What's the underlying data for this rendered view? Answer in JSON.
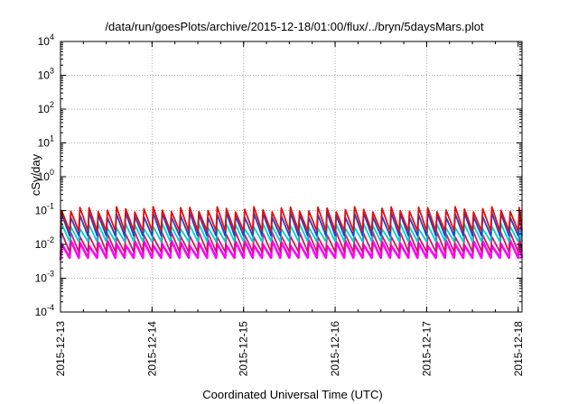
{
  "chart_data": {
    "type": "line",
    "title": "/data/run/goesPlots/archive/2015-12-18/01:00/flux/../bryn/5daysMars.plot",
    "xlabel": "Coordinated Universal Time (UTC)",
    "ylabel": "cSv/day",
    "y_scale": "log",
    "ylim": [
      0.0001,
      10000
    ],
    "y_ticks": [
      {
        "base": "10",
        "exp": "4",
        "value": 10000
      },
      {
        "base": "10",
        "exp": "3",
        "value": 1000
      },
      {
        "base": "10",
        "exp": "2",
        "value": 100
      },
      {
        "base": "10",
        "exp": "1",
        "value": 10
      },
      {
        "base": "10",
        "exp": "0",
        "value": 1
      },
      {
        "base": "10",
        "exp": "-1",
        "value": 0.1
      },
      {
        "base": "10",
        "exp": "-2",
        "value": 0.01
      },
      {
        "base": "10",
        "exp": "-3",
        "value": 0.001
      },
      {
        "base": "10",
        "exp": "-4",
        "value": 0.0001
      }
    ],
    "x_ticks": [
      "2015-12-13",
      "2015-12-14",
      "2015-12-15",
      "2015-12-16",
      "2015-12-17",
      "2015-12-18"
    ],
    "xlim": [
      "2015-12-13",
      "2015-12-18 01:00"
    ],
    "grid": true,
    "series_pattern": "sawtooth",
    "cycles_per_day": 10,
    "series": [
      {
        "color": "#ff00ff",
        "peak": 0.011,
        "trough": 0.004
      },
      {
        "color": "#cc1a66",
        "peak": 0.02,
        "trough": 0.006
      },
      {
        "color": "#00d0d0",
        "peak": 0.035,
        "trough": 0.012
      },
      {
        "color": "#1f3fd0",
        "peak": 0.075,
        "trough": 0.018
      },
      {
        "color": "#e01010",
        "peak": 0.11,
        "trough": 0.025
      }
    ]
  }
}
